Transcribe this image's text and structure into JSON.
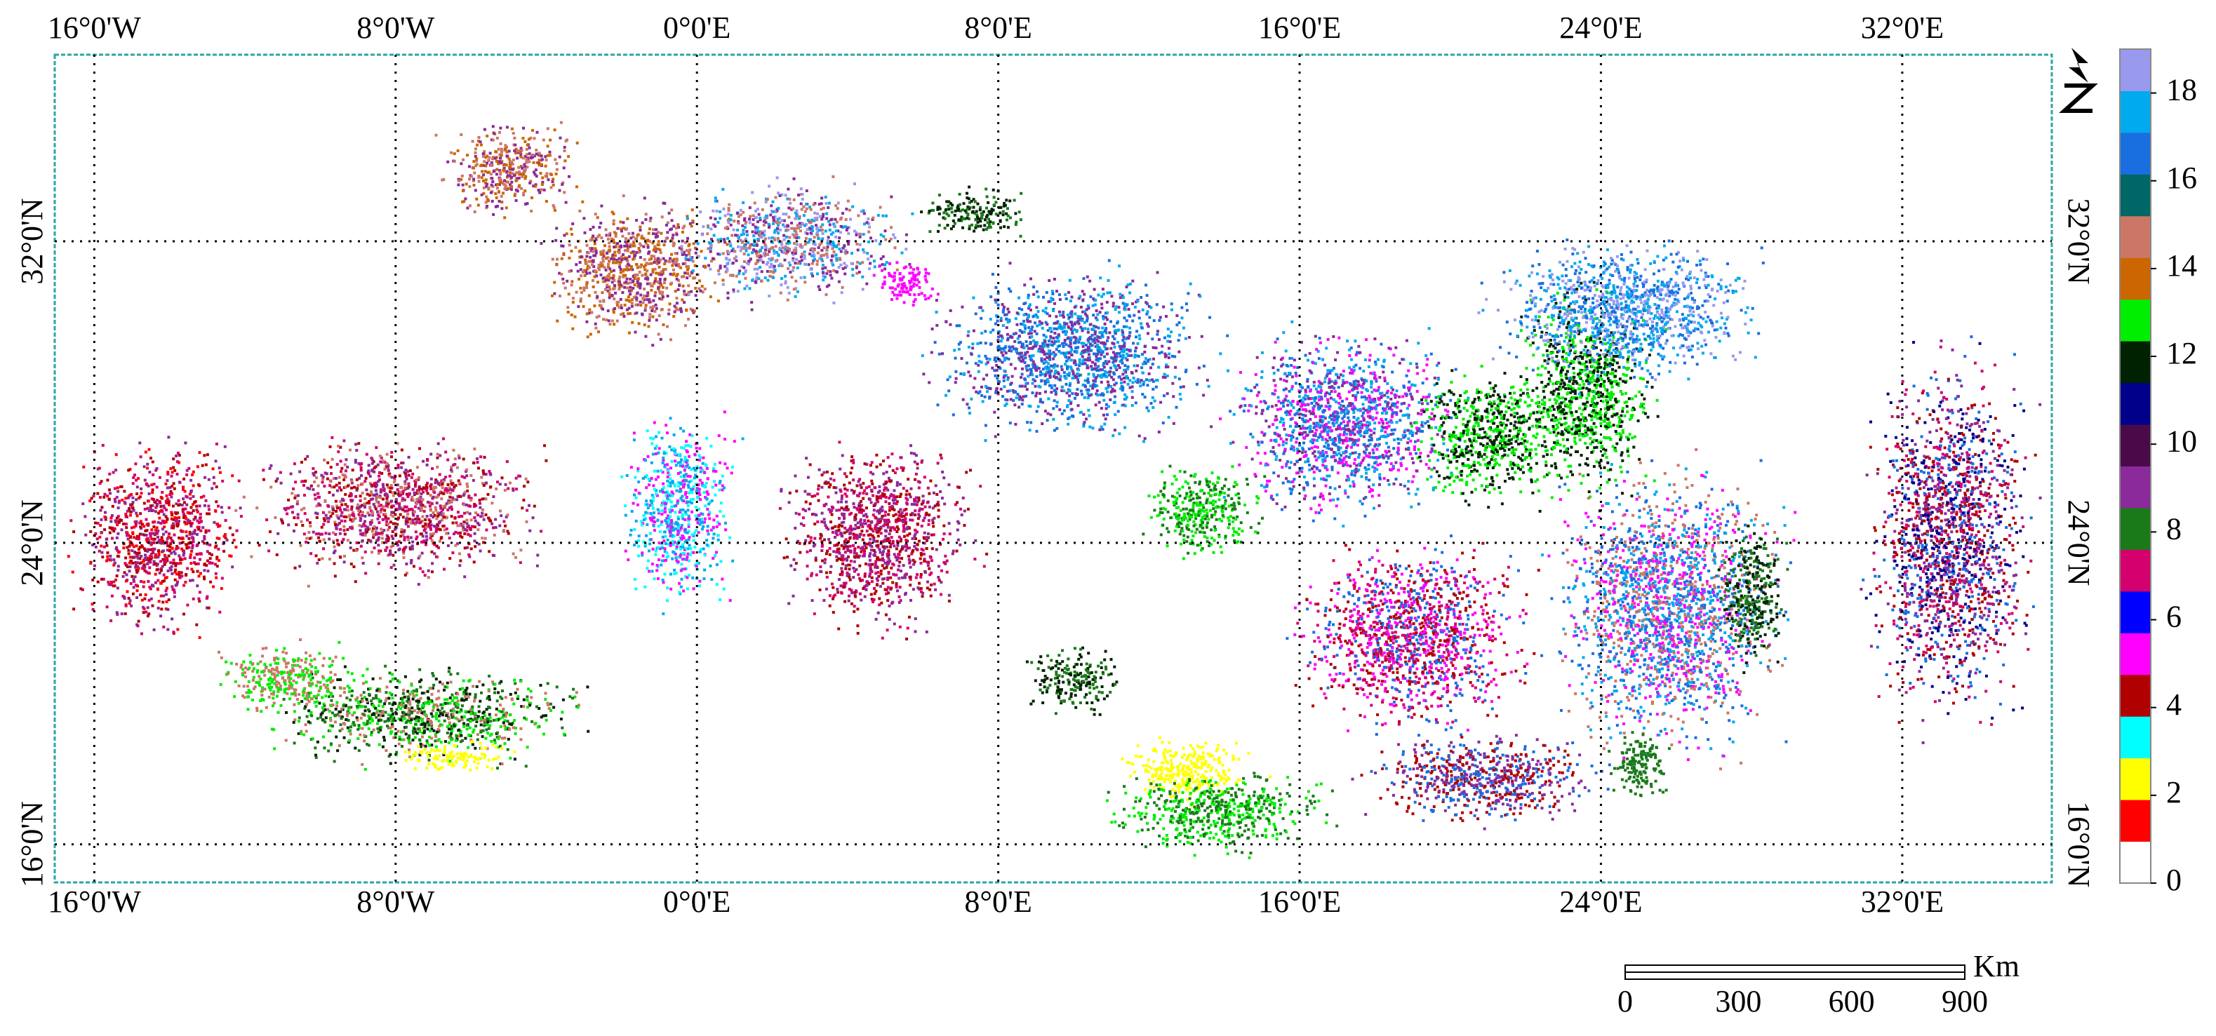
{
  "map": {
    "xlim": [
      -17.05,
      35.97
    ],
    "ylim": [
      14.99,
      36.95
    ],
    "xticks": [
      {
        "value": -16,
        "label": "16°0'W"
      },
      {
        "value": -8,
        "label": "8°0'W"
      },
      {
        "value": 0,
        "label": "0°0'E"
      },
      {
        "value": 8,
        "label": "8°0'E"
      },
      {
        "value": 16,
        "label": "16°0'E"
      },
      {
        "value": 24,
        "label": "24°0'E"
      },
      {
        "value": 32,
        "label": "32°0'E"
      }
    ],
    "yticks": [
      {
        "value": 16,
        "label": "16°0'N"
      },
      {
        "value": 24,
        "label": "24°0'N"
      },
      {
        "value": 32,
        "label": "32°0'N"
      }
    ],
    "grid": true,
    "colorbar": {
      "clim": [
        0,
        19
      ],
      "ticks": [
        0,
        2,
        4,
        6,
        8,
        10,
        12,
        14,
        16,
        18
      ],
      "colors": [
        "#ffffff",
        "#ff0000",
        "#ffff00",
        "#00ffff",
        "#b00000",
        "#ff00ff",
        "#0000ff",
        "#d4006e",
        "#1a7a1a",
        "#8b2a9b",
        "#4a0a4a",
        "#00008b",
        "#002200",
        "#00ee00",
        "#cc6600",
        "#cc7766",
        "#006666",
        "#1a6fe0",
        "#00aaee",
        "#9999ee"
      ]
    },
    "scale_bar": {
      "unit": "Km",
      "range": [
        0,
        900
      ],
      "ticks": [
        0,
        300,
        600,
        900
      ]
    }
  }
}
